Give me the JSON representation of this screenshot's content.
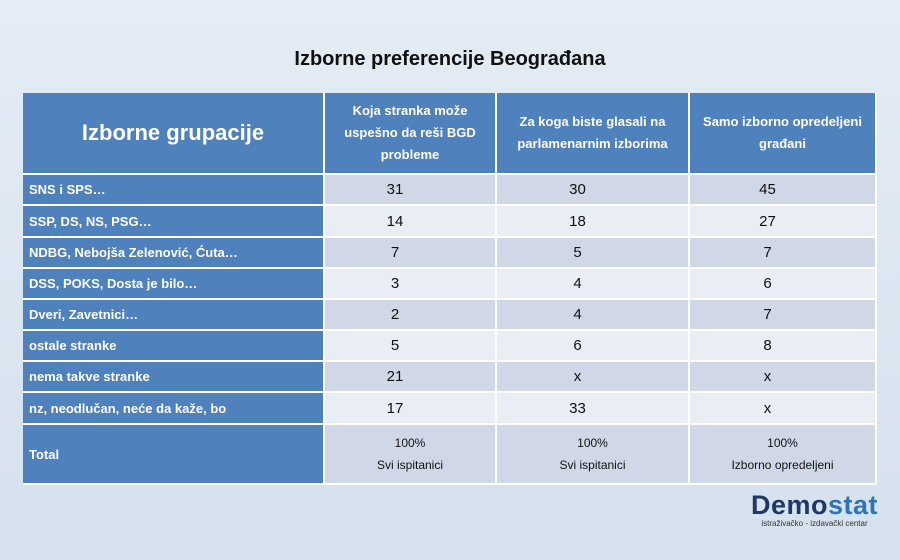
{
  "title": "Izborne preferencije Beograđana",
  "table": {
    "header": {
      "corner": "Izborne grupacije",
      "columns": [
        "Koja stranka može uspešno da reši BGD probleme",
        "Za koga biste glasali na parlamenarnim izborima",
        "Samo izborno opredeljeni građani"
      ]
    },
    "rows": [
      {
        "label": "SNS i SPS…",
        "cells": [
          31,
          30,
          45
        ]
      },
      {
        "label": "SSP, DS, NS, PSG…",
        "cells": [
          14,
          18,
          27
        ]
      },
      {
        "label": "NDBG, Nebojša Zelenović, Ćuta…",
        "cells": [
          7,
          5,
          7
        ]
      },
      {
        "label": "DSS, POKS, Dosta je bilo…",
        "cells": [
          3,
          4,
          6
        ]
      },
      {
        "label": "Dveri, Zavetnici…",
        "cells": [
          2,
          4,
          7
        ]
      },
      {
        "label": "ostale stranke",
        "cells": [
          5,
          6,
          8
        ]
      },
      {
        "label": "nema takve stranke",
        "cells": [
          21,
          "x",
          "x"
        ]
      },
      {
        "label": "nz, neodlučan, neće da kaže, bo",
        "cells": [
          17,
          33,
          "x"
        ]
      }
    ],
    "total": {
      "label": "Total",
      "cells": [
        {
          "value": "100%",
          "note": "Svi ispitanici"
        },
        {
          "value": "100%",
          "note": "Svi ispitanici"
        },
        {
          "value": "100%",
          "note": "Izborno opredeljeni"
        }
      ]
    }
  },
  "logo": {
    "name_start": "Demo",
    "name_end": "stat",
    "tagline": "istraživačko - izdavački centar"
  }
}
